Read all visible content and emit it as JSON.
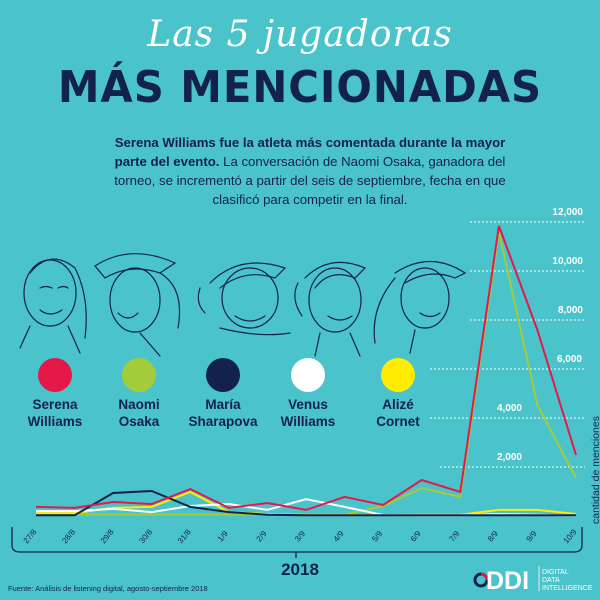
{
  "header": {
    "script_title": "Las 5 jugadoras",
    "main_title": "MÁS MENCIONADAS",
    "intro_bold": "Serena Williams fue la atleta más comentada durante la mayor parte del evento.",
    "intro_rest": " La conversación de Naomi Osaka, ganadora del torneo, se incrementó a partir del seis de septiembre, fecha en que clasificó para competir en la final."
  },
  "legend": [
    {
      "line1": "Serena",
      "line2": "Williams",
      "color": "#e5184a"
    },
    {
      "line1": "Naomi",
      "line2": "Osaka",
      "color": "#a3cc3a"
    },
    {
      "line1": "María",
      "line2": "Sharapova",
      "color": "#13224a"
    },
    {
      "line1": "Venus",
      "line2": "Williams",
      "color": "#ffffff"
    },
    {
      "line1": "Alizé",
      "line2": "Cornet",
      "color": "#ffec00"
    }
  ],
  "footer": {
    "year": "2018",
    "source": "Fuente: Análisis de listening digital, agosto-septiembre 2018",
    "logo_mark": "DDI",
    "logo_text": [
      "DIGITAL",
      "DATA",
      "INTELLIGENCE"
    ]
  },
  "chart_data": {
    "type": "line",
    "title": "Las 5 jugadoras más mencionadas",
    "xlabel": "2018",
    "ylabel": "cantidad de menciones",
    "categories": [
      "27/8",
      "28/8",
      "29/8",
      "30/8",
      "31/8",
      "1/9",
      "2/9",
      "3/9",
      "4/9",
      "5/9",
      "6/9",
      "7/9",
      "8/9",
      "9/9",
      "10/9"
    ],
    "ylim": [
      0,
      12000
    ],
    "yticks": [
      2000,
      4000,
      6000,
      8000,
      10000,
      12000
    ],
    "ytick_labels": [
      "2,000",
      "4,000",
      "6,000",
      "8,000",
      "10,000",
      "12,000"
    ],
    "grid": "dotted horizontal",
    "series": [
      {
        "name": "Serena Williams",
        "color": "#e5184a",
        "values": [
          370,
          330,
          570,
          490,
          1100,
          330,
          530,
          250,
          780,
          450,
          1470,
          980,
          11840,
          7590,
          2490
        ]
      },
      {
        "name": "Naomi Osaka",
        "color": "#a3cc3a",
        "values": [
          60,
          60,
          60,
          60,
          60,
          60,
          60,
          60,
          60,
          410,
          1140,
          780,
          11590,
          4530,
          1550
        ]
      },
      {
        "name": "María Sharapova",
        "color": "#13224a",
        "values": [
          30,
          30,
          940,
          1020,
          370,
          160,
          50,
          30,
          30,
          30,
          30,
          30,
          30,
          30,
          30
        ]
      },
      {
        "name": "Venus Williams",
        "color": "#ffffff",
        "values": [
          200,
          200,
          290,
          160,
          410,
          490,
          250,
          690,
          370,
          40,
          30,
          30,
          80,
          50,
          20
        ]
      },
      {
        "name": "Alizé Cornet",
        "color": "#ffec00",
        "values": [
          120,
          120,
          330,
          370,
          980,
          160,
          80,
          40,
          40,
          40,
          50,
          50,
          250,
          250,
          80
        ]
      }
    ]
  }
}
